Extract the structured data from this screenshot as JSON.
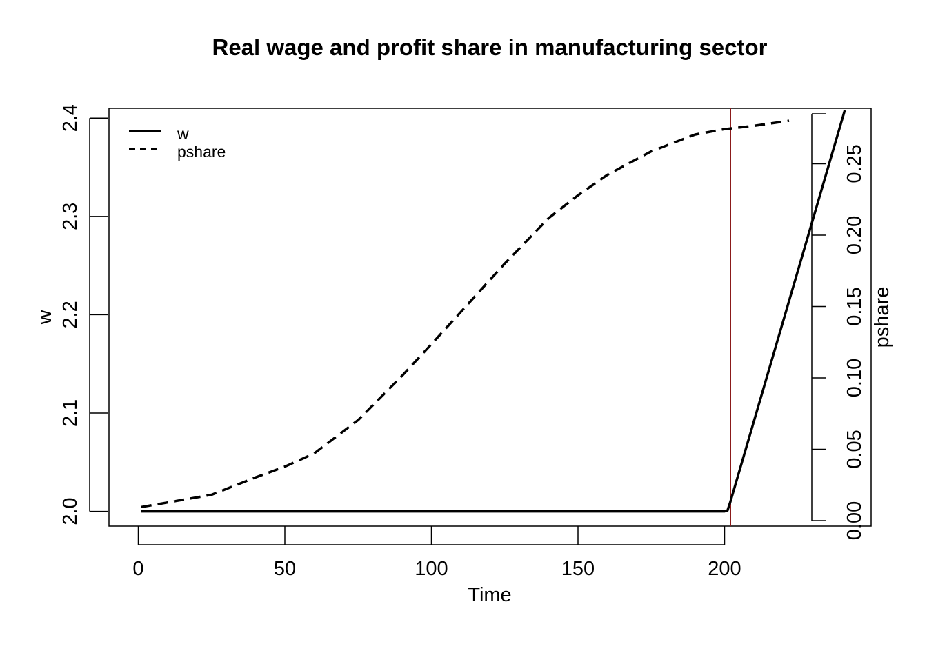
{
  "chart_data": {
    "type": "line",
    "title": "Real wage and profit share in manufacturing sector",
    "xlabel": "Time",
    "ylabel": "w",
    "y2label": "pshare",
    "xlim": [
      -10,
      250
    ],
    "ylim": [
      1.985,
      2.41
    ],
    "y2lim": [
      0,
      0.285
    ],
    "x_ticks": [
      "0",
      "50",
      "100",
      "150",
      "200"
    ],
    "y_ticks": [
      "2.0",
      "2.1",
      "2.2",
      "2.3",
      "2.4"
    ],
    "y2_ticks": [
      "0.00",
      "0.05",
      "0.10",
      "0.15",
      "0.20",
      "0.25"
    ],
    "vline_x": 202,
    "vline_color": "#8b1a1a",
    "legend": {
      "position": "top-left",
      "entries": [
        "w",
        "pshare"
      ]
    },
    "series": [
      {
        "name": "w",
        "axis": "left",
        "style": "solid",
        "x": [
          1,
          50,
          100,
          150,
          200,
          201,
          202,
          241
        ],
        "values": [
          2.0,
          2.0,
          2.0,
          2.0,
          2.0,
          2.001,
          2.01,
          2.408
        ]
      },
      {
        "name": "pshare",
        "axis": "right",
        "style": "dashed",
        "x": [
          1,
          10,
          25,
          40,
          50,
          60,
          75,
          90,
          100,
          110,
          125,
          140,
          150,
          160,
          175,
          190,
          200,
          210,
          222
        ],
        "values": [
          0.0095,
          0.0127,
          0.0181,
          0.0303,
          0.0378,
          0.0471,
          0.0705,
          0.1015,
          0.1236,
          0.1461,
          0.1801,
          0.2119,
          0.2279,
          0.2422,
          0.2587,
          0.2705,
          0.2743,
          0.2766,
          0.2801
        ]
      }
    ]
  }
}
